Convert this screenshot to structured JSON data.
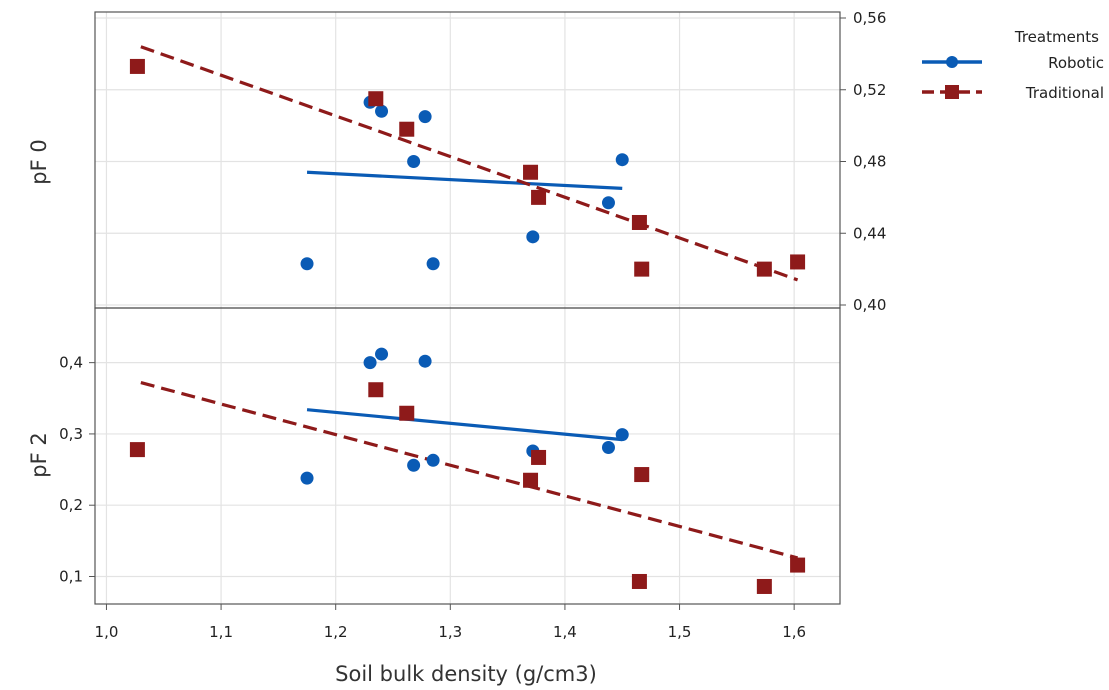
{
  "chart_data": {
    "type": "scatter",
    "xlabel": "Soil bulk density (g/cm3)",
    "x_ticks": [
      "1,0",
      "1,1",
      "1,2",
      "1,3",
      "1,4",
      "1,5",
      "1,6"
    ],
    "xlim": [
      0.99,
      1.64
    ],
    "grid": true,
    "legend": {
      "title": "Treatments",
      "placement": "top-right",
      "entries": [
        {
          "name": "Robotic",
          "color": "#0a5bb5",
          "marker": "circle",
          "line": "solid"
        },
        {
          "name": "Traditional",
          "color": "#8e1a1a",
          "marker": "square",
          "line": "dashed"
        }
      ]
    },
    "panels": [
      {
        "ylabel": "pF 0",
        "y_axis_side": "right",
        "y_ticks": [
          "0,40",
          "0,44",
          "0,48",
          "0,52",
          "0,56"
        ],
        "ylim": [
          0.4,
          0.56
        ],
        "series": [
          {
            "name": "Robotic",
            "points": [
              [
                1.175,
                0.423
              ],
              [
                1.23,
                0.513
              ],
              [
                1.24,
                0.508
              ],
              [
                1.268,
                0.48
              ],
              [
                1.278,
                0.505
              ],
              [
                1.285,
                0.423
              ],
              [
                1.372,
                0.438
              ],
              [
                1.438,
                0.457
              ],
              [
                1.45,
                0.481
              ]
            ],
            "fit": [
              [
                1.175,
                0.474
              ],
              [
                1.45,
                0.465
              ]
            ]
          },
          {
            "name": "Traditional",
            "points": [
              [
                1.027,
                0.533
              ],
              [
                1.235,
                0.515
              ],
              [
                1.262,
                0.498
              ],
              [
                1.37,
                0.474
              ],
              [
                1.377,
                0.46
              ],
              [
                1.465,
                0.446
              ],
              [
                1.467,
                0.42
              ],
              [
                1.574,
                0.42
              ],
              [
                1.603,
                0.424
              ]
            ],
            "fit": [
              [
                1.03,
                0.544
              ],
              [
                1.603,
                0.414
              ]
            ]
          }
        ]
      },
      {
        "ylabel": "pF 2",
        "y_axis_side": "left",
        "y_ticks": [
          "0,1",
          "0,2",
          "0,3",
          "0,4"
        ],
        "ylim": [
          0.06,
          0.45
        ],
        "series": [
          {
            "name": "Robotic",
            "points": [
              [
                1.175,
                0.238
              ],
              [
                1.23,
                0.4
              ],
              [
                1.24,
                0.412
              ],
              [
                1.268,
                0.256
              ],
              [
                1.278,
                0.402
              ],
              [
                1.285,
                0.263
              ],
              [
                1.372,
                0.276
              ],
              [
                1.438,
                0.281
              ],
              [
                1.45,
                0.299
              ]
            ],
            "fit": [
              [
                1.175,
                0.334
              ],
              [
                1.45,
                0.292
              ]
            ]
          },
          {
            "name": "Traditional",
            "points": [
              [
                1.027,
                0.278
              ],
              [
                1.235,
                0.362
              ],
              [
                1.262,
                0.329
              ],
              [
                1.37,
                0.235
              ],
              [
                1.377,
                0.267
              ],
              [
                1.465,
                0.093
              ],
              [
                1.467,
                0.243
              ],
              [
                1.574,
                0.086
              ],
              [
                1.603,
                0.116
              ]
            ],
            "fit": [
              [
                1.03,
                0.372
              ],
              [
                1.603,
                0.126
              ]
            ]
          }
        ]
      }
    ]
  }
}
